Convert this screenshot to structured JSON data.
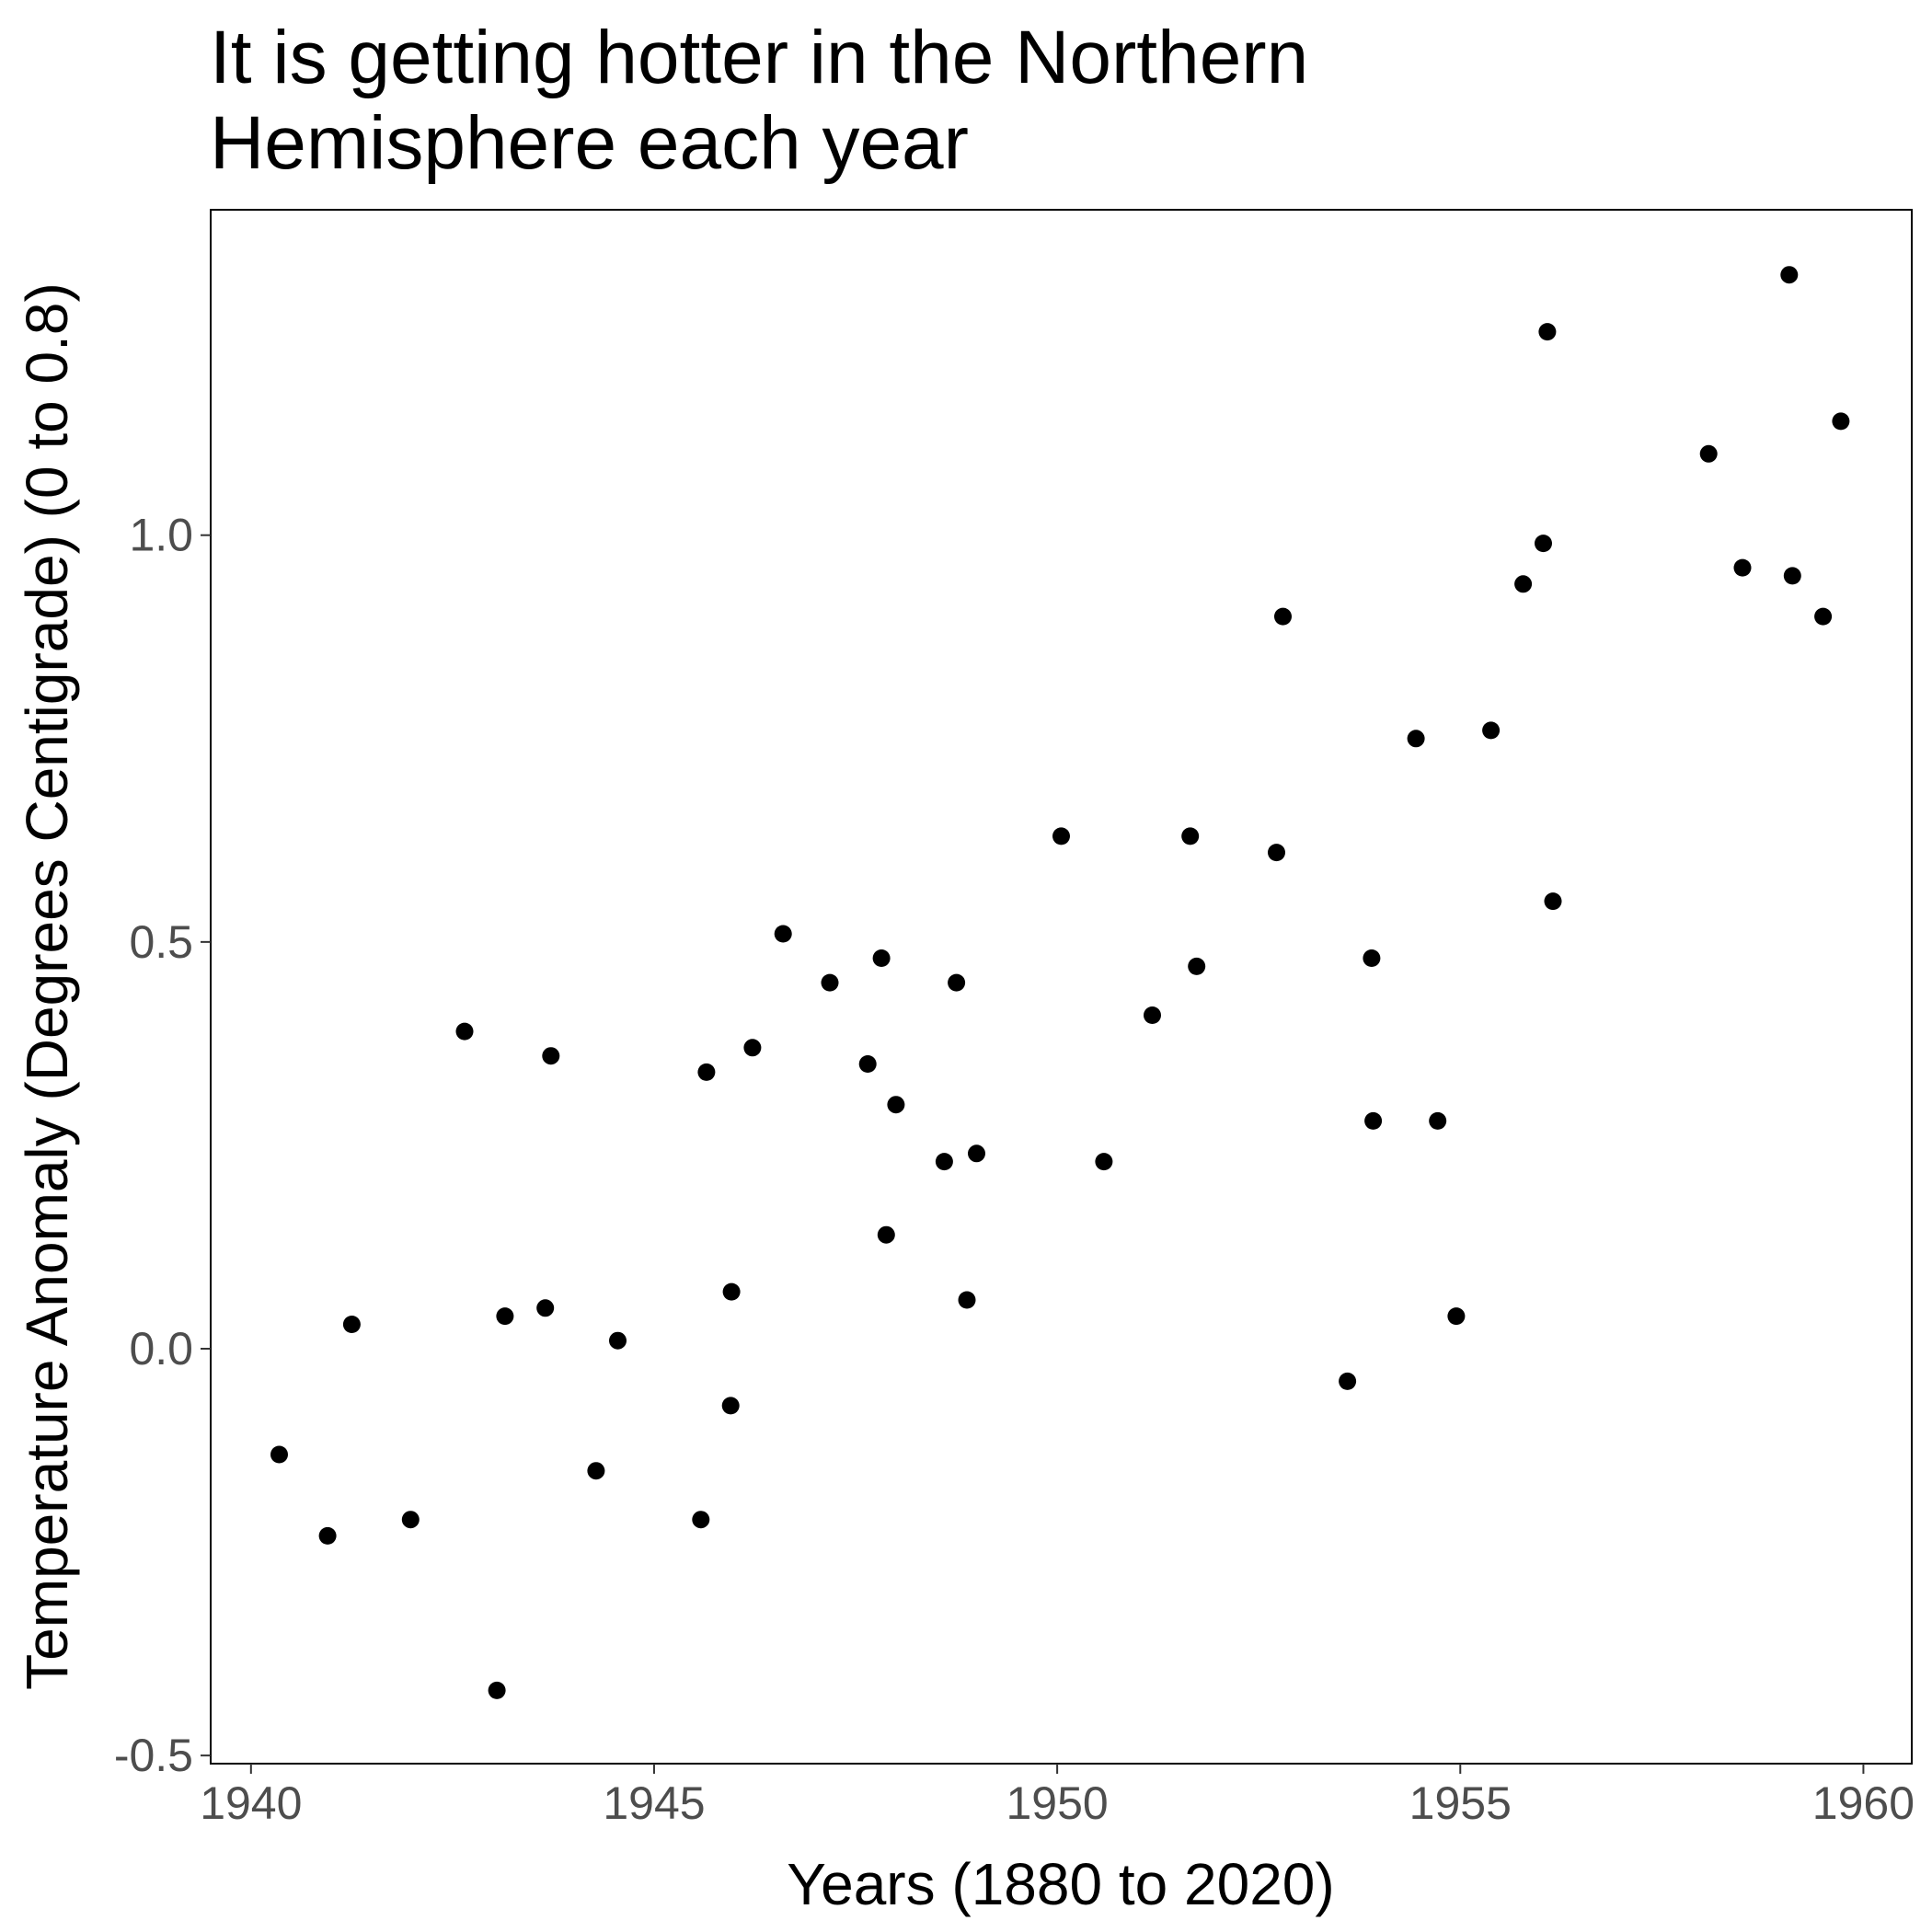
{
  "chart_data": {
    "type": "scatter",
    "title_lines": [
      "It is getting hotter in the Northern",
      "Hemisphere each year"
    ],
    "xlabel": "Years (1880 to 2020)",
    "ylabel": "Temperature Anomaly (Degrees Centigrade) (0 to 0.8)",
    "xlim": [
      1939.5,
      1960.6
    ],
    "ylim": [
      -0.51,
      1.4
    ],
    "x_ticks": [
      1940,
      1945,
      1950,
      1955,
      1960
    ],
    "x_tick_labels": [
      "1940",
      "1945",
      "1950",
      "1955",
      "1960"
    ],
    "y_ticks": [
      -0.5,
      0.0,
      0.5,
      1.0
    ],
    "y_tick_labels": [
      "-0.5",
      "0.0",
      "0.5",
      "1.0"
    ],
    "grid": false,
    "point_color": "#000000",
    "points": [
      {
        "x": 1940.35,
        "y": -0.13
      },
      {
        "x": 1940.95,
        "y": -0.23
      },
      {
        "x": 1941.25,
        "y": 0.03
      },
      {
        "x": 1941.98,
        "y": -0.21
      },
      {
        "x": 1942.65,
        "y": 0.39
      },
      {
        "x": 1943.05,
        "y": -0.42
      },
      {
        "x": 1943.15,
        "y": 0.04
      },
      {
        "x": 1943.65,
        "y": 0.05
      },
      {
        "x": 1943.72,
        "y": 0.36
      },
      {
        "x": 1944.28,
        "y": -0.15
      },
      {
        "x": 1944.55,
        "y": 0.01
      },
      {
        "x": 1945.58,
        "y": -0.21
      },
      {
        "x": 1945.65,
        "y": 0.34
      },
      {
        "x": 1945.95,
        "y": -0.07
      },
      {
        "x": 1945.96,
        "y": 0.07
      },
      {
        "x": 1946.22,
        "y": 0.37
      },
      {
        "x": 1946.6,
        "y": 0.51
      },
      {
        "x": 1947.18,
        "y": 0.45
      },
      {
        "x": 1947.65,
        "y": 0.35
      },
      {
        "x": 1947.82,
        "y": 0.48
      },
      {
        "x": 1947.88,
        "y": 0.14
      },
      {
        "x": 1948.0,
        "y": 0.3
      },
      {
        "x": 1948.6,
        "y": 0.23
      },
      {
        "x": 1948.75,
        "y": 0.45
      },
      {
        "x": 1948.88,
        "y": 0.06
      },
      {
        "x": 1949.0,
        "y": 0.24
      },
      {
        "x": 1950.05,
        "y": 0.63
      },
      {
        "x": 1950.58,
        "y": 0.23
      },
      {
        "x": 1951.18,
        "y": 0.41
      },
      {
        "x": 1951.65,
        "y": 0.63
      },
      {
        "x": 1951.73,
        "y": 0.47
      },
      {
        "x": 1952.72,
        "y": 0.61
      },
      {
        "x": 1952.8,
        "y": 0.9
      },
      {
        "x": 1953.6,
        "y": -0.04
      },
      {
        "x": 1953.9,
        "y": 0.48
      },
      {
        "x": 1953.92,
        "y": 0.28
      },
      {
        "x": 1954.45,
        "y": 0.75
      },
      {
        "x": 1954.72,
        "y": 0.28
      },
      {
        "x": 1954.95,
        "y": 0.04
      },
      {
        "x": 1955.38,
        "y": 0.76
      },
      {
        "x": 1955.78,
        "y": 0.94
      },
      {
        "x": 1956.03,
        "y": 0.99
      },
      {
        "x": 1956.08,
        "y": 1.25
      },
      {
        "x": 1956.15,
        "y": 0.55
      },
      {
        "x": 1958.08,
        "y": 1.1
      },
      {
        "x": 1958.5,
        "y": 0.96
      },
      {
        "x": 1959.08,
        "y": 1.32
      },
      {
        "x": 1959.12,
        "y": 0.95
      },
      {
        "x": 1959.5,
        "y": 0.9
      },
      {
        "x": 1959.72,
        "y": 1.14
      }
    ]
  }
}
